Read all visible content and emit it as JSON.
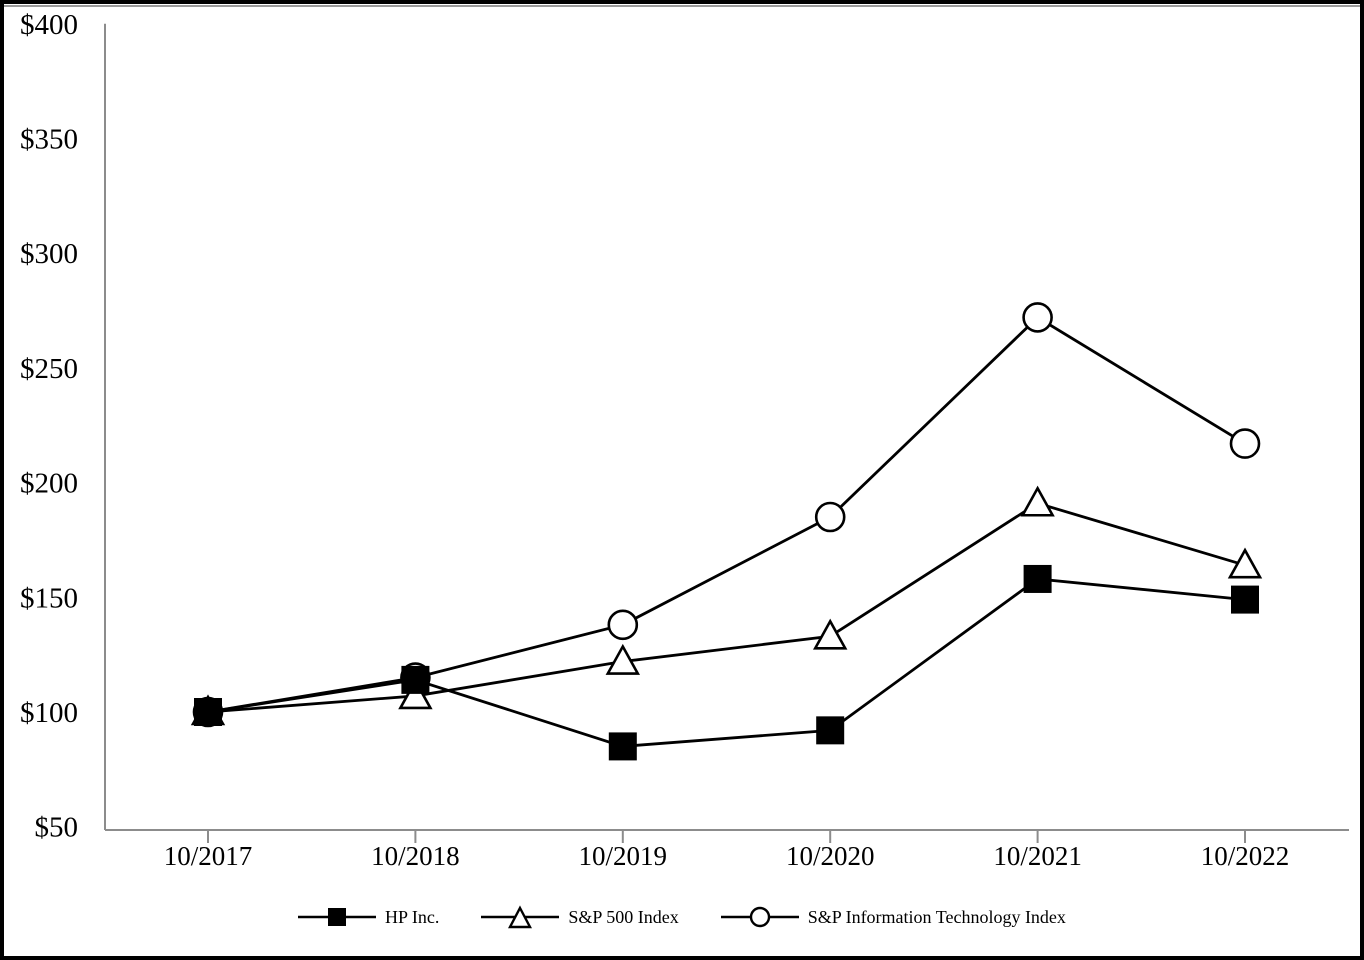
{
  "chart_data": {
    "type": "line",
    "title": "",
    "xlabel": "",
    "ylabel": "",
    "categories": [
      "10/2017",
      "10/2018",
      "10/2019",
      "10/2020",
      "10/2021",
      "10/2022"
    ],
    "series": [
      {
        "name": "HP Inc.",
        "marker": "square",
        "marker_fill": "#000000",
        "values": [
          100,
          114,
          85,
          92,
          158,
          149
        ]
      },
      {
        "name": "S&P 500 Index",
        "marker": "triangle",
        "marker_fill": "#ffffff",
        "values": [
          100,
          107,
          122,
          133,
          191,
          164
        ]
      },
      {
        "name": "S&P Information Technology Index",
        "marker": "circle",
        "marker_fill": "#ffffff",
        "values": [
          100,
          115,
          138,
          185,
          272,
          217
        ]
      }
    ],
    "y_ticks": [
      400,
      350,
      300,
      250,
      200,
      150,
      100,
      50
    ],
    "y_tick_labels": [
      "$400",
      "$350",
      "$300",
      "$250",
      "$200",
      "$150",
      "$100",
      "$50"
    ],
    "y_tick_prefix": "$",
    "ylim": [
      50,
      400
    ],
    "grid": false,
    "legend_position": "bottom",
    "colors": {
      "line": "#000000",
      "axis": "#8c8c8c",
      "background": "#ffffff",
      "frame_border": "#000000"
    }
  }
}
